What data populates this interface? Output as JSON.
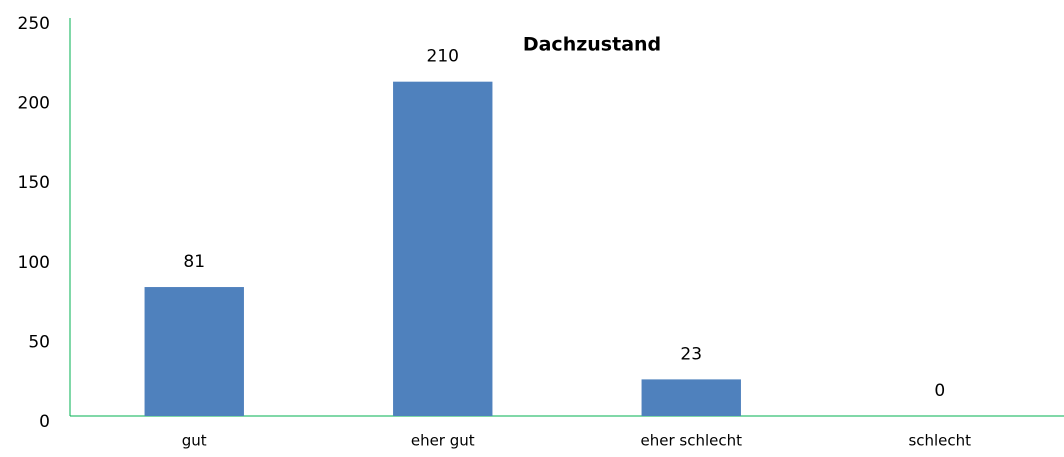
{
  "chart_data": {
    "type": "bar",
    "title": "Dachzustand",
    "categories": [
      "gut",
      "eher gut",
      "eher schlecht",
      "schlecht"
    ],
    "values": [
      81,
      210,
      23,
      0
    ],
    "color": "#4f81bd",
    "ylim": [
      0,
      250
    ],
    "yticks": [
      0,
      50,
      100,
      150,
      200,
      250
    ],
    "grid": false
  }
}
